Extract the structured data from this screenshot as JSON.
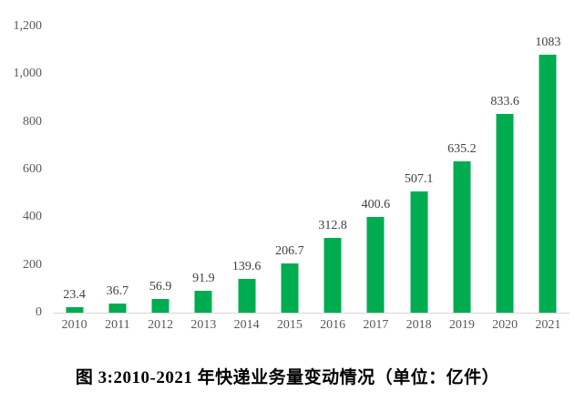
{
  "chart_data": {
    "type": "bar",
    "title": "图 3:2010-2021 年快递业务量变动情况（单位：亿件）",
    "xlabel": "",
    "ylabel": "",
    "categories": [
      "2010",
      "2011",
      "2012",
      "2013",
      "2014",
      "2015",
      "2016",
      "2017",
      "2018",
      "2019",
      "2020",
      "2021"
    ],
    "values": [
      23.4,
      36.7,
      56.9,
      91.9,
      139.6,
      206.7,
      312.8,
      400.6,
      507.1,
      635.2,
      833.6,
      1083
    ],
    "value_labels": [
      "23.4",
      "36.7",
      "56.9",
      "91.9",
      "139.6",
      "206.7",
      "312.8",
      "400.6",
      "507.1",
      "635.2",
      "833.6",
      "1083"
    ],
    "ylim": [
      0,
      1200
    ],
    "ytick_values": [
      0,
      200,
      400,
      600,
      800,
      1000,
      1200
    ],
    "ytick_labels": [
      "0",
      "200",
      "400",
      "600",
      "800",
      "1,000",
      "1,200"
    ],
    "grid": false,
    "legend": "none",
    "bar_color": "#00AC50",
    "axis_line_color": "#d6d6d6",
    "tick_label_color": "#595959",
    "data_label_color": "#404040",
    "caption_color": "#000000"
  }
}
